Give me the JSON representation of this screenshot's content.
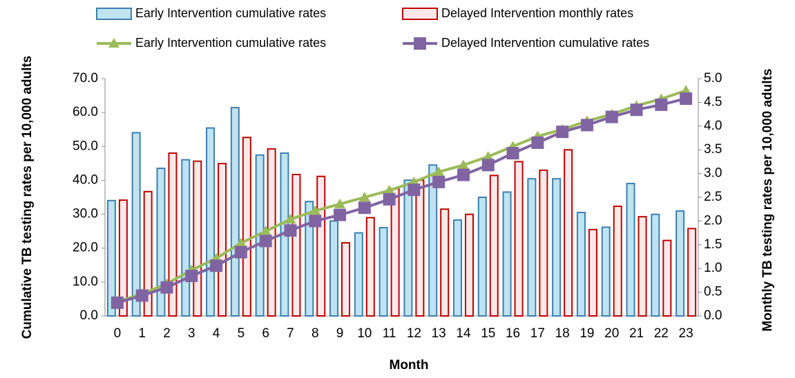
{
  "chart_data": {
    "type": "bar",
    "x_label": "Month",
    "y_label": "Cumulative TB testing rates per 10,000 adults",
    "y2_label": "Monthly TB testing rates per 10,000 adults",
    "categories": [
      "0",
      "1",
      "2",
      "3",
      "4",
      "5",
      "6",
      "7",
      "8",
      "9",
      "10",
      "11",
      "12",
      "13",
      "14",
      "15",
      "16",
      "17",
      "18",
      "19",
      "20",
      "21",
      "22",
      "23"
    ],
    "series": [
      {
        "name": "Early Intervention cumulative rates",
        "type": "bar",
        "axis": "y2",
        "color": "#3c7fb1",
        "fill": "#bfe3f1",
        "values": [
          2.43,
          3.86,
          3.11,
          3.29,
          3.96,
          4.39,
          3.39,
          3.43,
          2.41,
          2.0,
          1.75,
          1.86,
          2.86,
          3.18,
          2.02,
          2.5,
          2.61,
          2.89,
          2.89,
          2.18,
          1.87,
          2.79,
          2.14,
          2.21
        ]
      },
      {
        "name": "Delayed Intervention monthly rates",
        "type": "bar",
        "axis": "y2",
        "color": "#c00000",
        "fill": "#fbe9e9",
        "values": [
          2.44,
          2.62,
          3.43,
          3.26,
          3.21,
          3.76,
          3.52,
          2.98,
          2.94,
          1.54,
          2.07,
          2.68,
          2.86,
          2.25,
          2.14,
          2.96,
          3.25,
          3.07,
          3.5,
          1.82,
          2.31,
          2.09,
          1.59,
          1.84
        ]
      },
      {
        "name": "Early Intervention cumulative rates",
        "type": "line",
        "marker": "triangle",
        "color": "#9bbb59",
        "values": [
          4.2,
          6.5,
          9.5,
          13.5,
          17,
          21.5,
          25,
          28.5,
          31,
          33,
          35,
          37,
          39.5,
          42.5,
          44.5,
          47,
          50,
          53,
          55,
          57.5,
          59.5,
          62,
          64,
          66.5
        ]
      },
      {
        "name": "Delayed Intervention cumulative rates",
        "type": "line",
        "marker": "square",
        "color": "#8064a2",
        "values": [
          3.9,
          6.0,
          8.4,
          11.8,
          14.8,
          18.8,
          22.1,
          25.2,
          28,
          29.8,
          31.9,
          34.4,
          37.2,
          39.5,
          41.6,
          44.5,
          48,
          51.1,
          54.3,
          56.3,
          58.7,
          60.8,
          62.3,
          64.1
        ]
      }
    ],
    "ylim": [
      0,
      70
    ],
    "yticks": [
      {
        "value": 0,
        "label": "0.0"
      },
      {
        "value": 10,
        "label": "10.0"
      },
      {
        "value": 20,
        "label": "20.0"
      },
      {
        "value": 30,
        "label": "30.0"
      },
      {
        "value": 40,
        "label": "40.0"
      },
      {
        "value": 50,
        "label": "50.0"
      },
      {
        "value": 60,
        "label": "60.0"
      },
      {
        "value": 70,
        "label": "70.0"
      }
    ],
    "y2lim": [
      0,
      5
    ],
    "y2ticks": [
      {
        "value": 0,
        "label": "0.0"
      },
      {
        "value": 0.5,
        "label": "0.5"
      },
      {
        "value": 1,
        "label": "1.0"
      },
      {
        "value": 1.5,
        "label": "1.5"
      },
      {
        "value": 2,
        "label": "2.0"
      },
      {
        "value": 2.5,
        "label": "2.5"
      },
      {
        "value": 3,
        "label": "3.0"
      },
      {
        "value": 3.5,
        "label": "3.5"
      },
      {
        "value": 4,
        "label": "4.0"
      },
      {
        "value": 4.5,
        "label": "4.5"
      },
      {
        "value": 5,
        "label": "5.0"
      }
    ],
    "legend": "top"
  }
}
